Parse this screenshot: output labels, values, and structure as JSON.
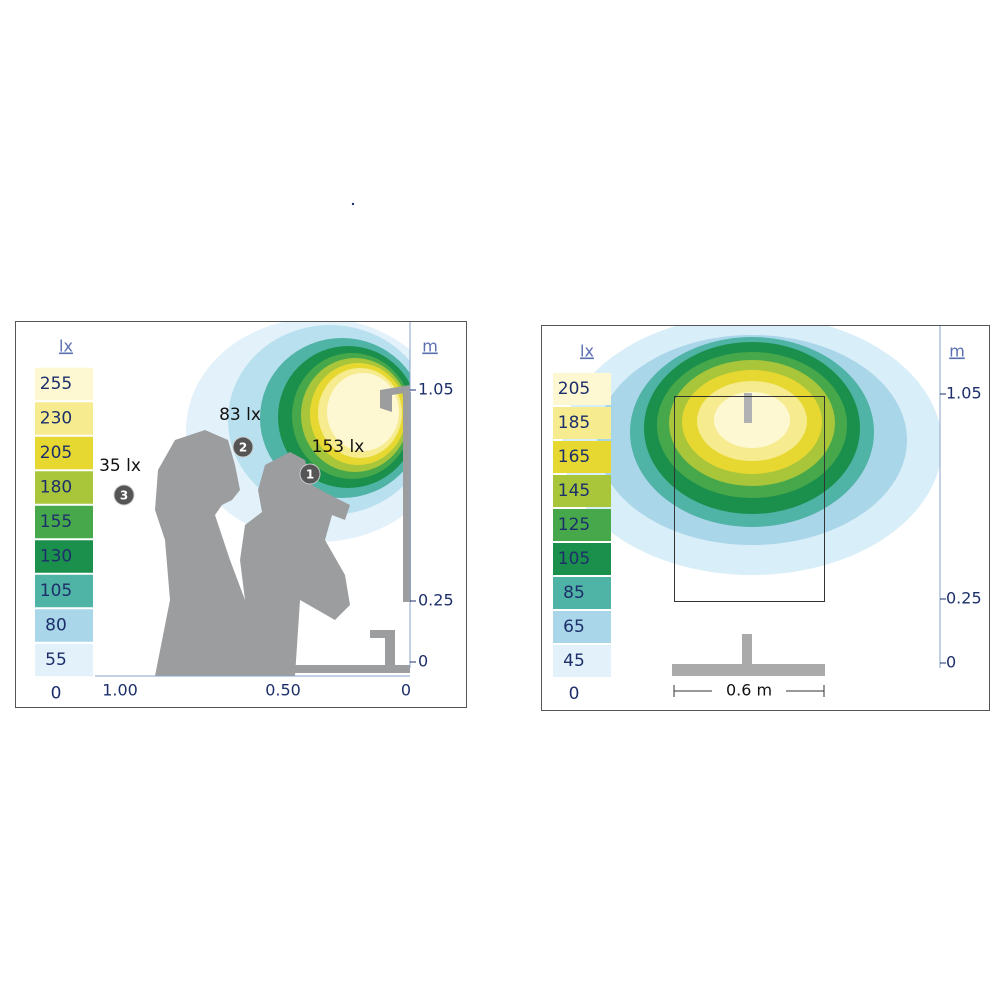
{
  "left_panel": {
    "unit": "lx",
    "legend": [
      "255",
      "230",
      "205",
      "180",
      "155",
      "130",
      "105",
      "80",
      "55"
    ],
    "legend_zero": "0",
    "axis_unit": "m",
    "yticks": [
      "1.05",
      "0.25",
      "0"
    ],
    "xticks": [
      "1.00",
      "0.50",
      "0"
    ],
    "annotations": [
      {
        "value": "153 lx",
        "marker": "1"
      },
      {
        "value": "83 lx",
        "marker": "2"
      },
      {
        "value": "35 lx",
        "marker": "3"
      }
    ]
  },
  "right_panel": {
    "unit": "lx",
    "legend": [
      "205",
      "185",
      "165",
      "145",
      "125",
      "105",
      "85",
      "65",
      "45"
    ],
    "legend_zero": "0",
    "axis_unit": "m",
    "yticks": [
      "1.05",
      "0.25",
      "0"
    ],
    "dimension": "0.6 m"
  }
}
